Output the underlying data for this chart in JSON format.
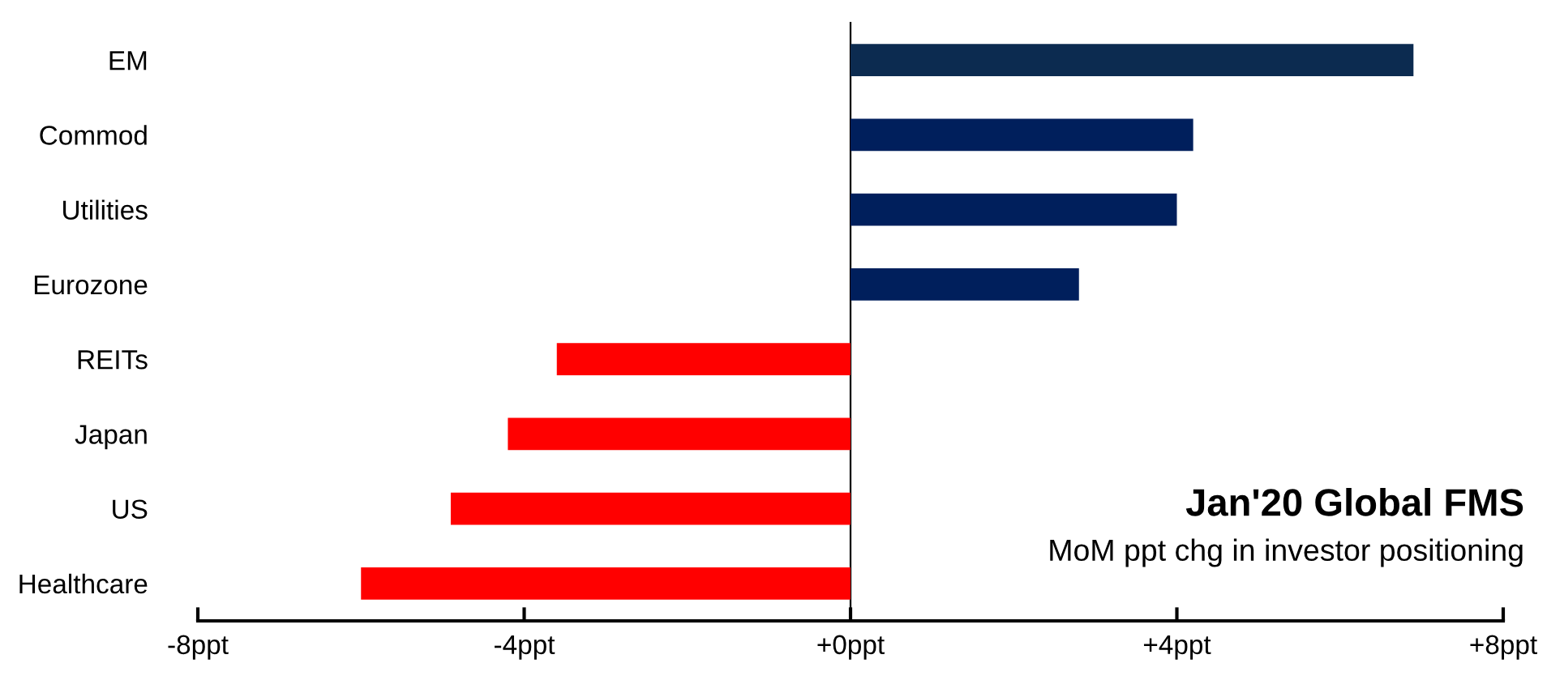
{
  "chart_data": {
    "type": "bar",
    "orientation": "horizontal",
    "title": "Jan'20 Global FMS",
    "subtitle": "MoM ppt chg in investor positioning",
    "categories": [
      "EM",
      "Commod",
      "Utilities",
      "Eurozone",
      "REITs",
      "Japan",
      "US",
      "Healthcare"
    ],
    "values": [
      6.9,
      4.2,
      4.0,
      2.8,
      -3.6,
      -4.2,
      -4.9,
      -6.0
    ],
    "colors": [
      "#0c2b50",
      "#001f5c",
      "#001f5c",
      "#001f5c",
      "#ff0000",
      "#ff0000",
      "#ff0000",
      "#ff0000"
    ],
    "xlim": [
      -8,
      8
    ],
    "xticks": [
      {
        "value": -8,
        "label": "-8ppt"
      },
      {
        "value": -4,
        "label": "-4ppt"
      },
      {
        "value": 0,
        "label": "+0ppt"
      },
      {
        "value": 4,
        "label": "+4ppt"
      },
      {
        "value": 8,
        "label": "+8ppt"
      }
    ],
    "legend": false
  }
}
